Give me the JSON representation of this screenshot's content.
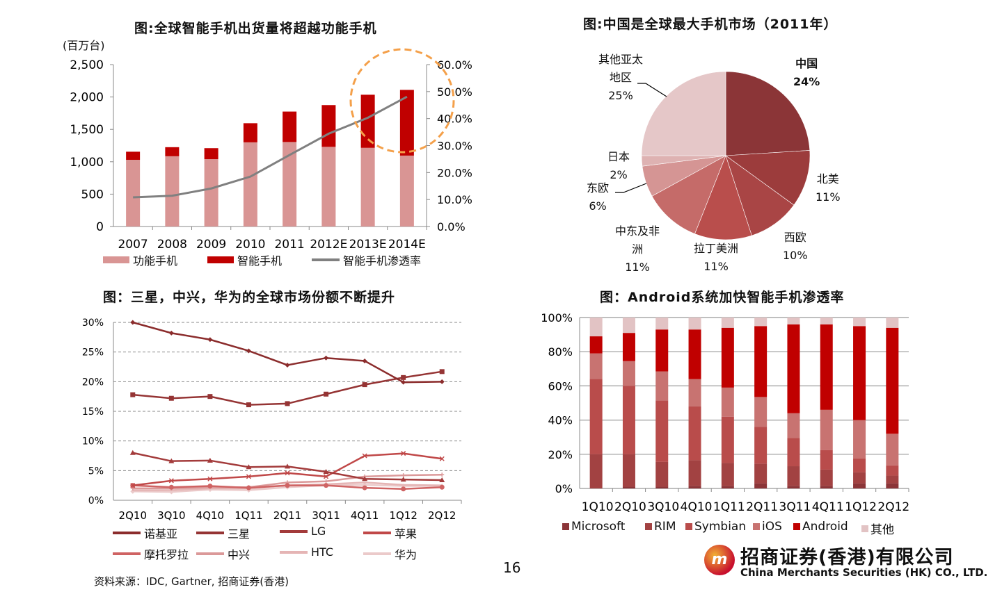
{
  "page_number": "16",
  "source_note": "资料来源：IDC, Gartner, 招商证券(香港)",
  "logo": {
    "chinese": "招商证券(香港)有限公司",
    "english": "China Merchants Securities (HK) CO., LTD.",
    "mark": "m"
  },
  "annotation": {
    "type": "dashed-circle",
    "color": "#F4A04A"
  },
  "chart_data": [
    {
      "type": "bar",
      "stacked": true,
      "title": "图:全球智能手机出货量将超越功能手机",
      "ylabel": "(百万台)",
      "categories": [
        "2007",
        "2008",
        "2009",
        "2010",
        "2011",
        "2012E",
        "2013E",
        "2014E"
      ],
      "ylim": [
        0,
        2500
      ],
      "yticks": [
        "0",
        "500",
        "1,000",
        "1,500",
        "2,000",
        "2,500"
      ],
      "y2lim": [
        0,
        60
      ],
      "y2ticks": [
        "0.0%",
        "10.0%",
        "20.0%",
        "30.0%",
        "40.0%",
        "50.0%",
        "60.0%"
      ],
      "series": [
        {
          "name": "功能手机",
          "type": "bar",
          "color": "#D99594",
          "values": [
            1030,
            1085,
            1040,
            1300,
            1305,
            1230,
            1215,
            1095
          ]
        },
        {
          "name": "智能手机",
          "type": "bar",
          "color": "#C00000",
          "values": [
            125,
            140,
            170,
            295,
            470,
            645,
            820,
            1015
          ]
        },
        {
          "name": "智能手机渗透率",
          "type": "line",
          "axis": "right",
          "color": "#808080",
          "values": [
            10.8,
            11.4,
            14.1,
            18.5,
            26.5,
            34.4,
            40.3,
            48.1
          ]
        }
      ]
    },
    {
      "type": "pie",
      "title": "图:中国是全球最大手机市场（2011年）",
      "slices": [
        {
          "label": "中国",
          "value": 24,
          "text": "24%",
          "color": "#8B3537"
        },
        {
          "label": "北美",
          "value": 11,
          "text": "11%",
          "color": "#9C3C3C"
        },
        {
          "label": "西欧",
          "value": 10,
          "text": "10%",
          "color": "#A94545"
        },
        {
          "label": "拉丁美洲",
          "value": 11,
          "text": "11%",
          "color": "#B94E4C"
        },
        {
          "label": "中东及非洲",
          "value": 11,
          "text": "11%",
          "color": "#C56B69"
        },
        {
          "label": "东欧",
          "value": 6,
          "text": "6%",
          "color": "#D59594"
        },
        {
          "label": "日本",
          "value": 2,
          "text": "2%",
          "color": "#DEB2B2"
        },
        {
          "label": "其他亚太地区",
          "value": 25,
          "text": "25%",
          "color": "#E5C7C8"
        }
      ]
    },
    {
      "type": "line",
      "title": "图：三星，中兴，华为的全球市场份额不断提升",
      "categories": [
        "2Q10",
        "3Q10",
        "4Q10",
        "1Q11",
        "2Q11",
        "3Q11",
        "4Q11",
        "1Q12",
        "2Q12"
      ],
      "ylim": [
        0,
        30
      ],
      "yticks": [
        "0%",
        "5%",
        "10%",
        "15%",
        "20%",
        "25%",
        "30%"
      ],
      "grid": true,
      "series": [
        {
          "name": "诺基亚",
          "color": "#8B2C2C",
          "marker": "diamond",
          "values": [
            30,
            28.2,
            27.1,
            25.2,
            22.8,
            24,
            23.5,
            19.9,
            20
          ]
        },
        {
          "name": "三星",
          "color": "#953434",
          "marker": "square",
          "values": [
            17.8,
            17.2,
            17.5,
            16.1,
            16.3,
            17.9,
            19.5,
            20.7,
            21.7
          ]
        },
        {
          "name": "LG",
          "color": "#A33B3B",
          "marker": "triangle",
          "values": [
            8,
            6.6,
            6.7,
            5.6,
            5.7,
            4.8,
            3.6,
            3.5,
            3.4
          ]
        },
        {
          "name": "苹果",
          "color": "#C04848",
          "marker": "x",
          "values": [
            2.5,
            3.3,
            3.6,
            4,
            4.6,
            4,
            7.5,
            7.9,
            7
          ]
        },
        {
          "name": "摩托罗拉",
          "color": "#CF6363",
          "marker": "circle",
          "values": [
            2.5,
            2.2,
            2.4,
            2.1,
            2.5,
            2.5,
            2.1,
            1.9,
            2.2
          ]
        },
        {
          "name": "中兴",
          "color": "#DB9999",
          "marker": "plus",
          "values": [
            2,
            2,
            2.2,
            2.2,
            3,
            3.2,
            4,
            4.2,
            4.3
          ]
        },
        {
          "name": "HTC",
          "color": "#E5B5B5",
          "marker": "none",
          "values": [
            1.7,
            1.7,
            2,
            2,
            2.5,
            2.7,
            3,
            2.6,
            2.5
          ]
        },
        {
          "name": "华为",
          "color": "#EBCACA",
          "marker": "diamond",
          "values": [
            1.5,
            1.4,
            1.8,
            1.7,
            2.2,
            2.5,
            2.6,
            2.4,
            2.4
          ]
        }
      ]
    },
    {
      "type": "bar",
      "stacked": true,
      "percent": true,
      "title": "图：Android系统加快智能手机渗透率",
      "categories": [
        "1Q10",
        "2Q10",
        "3Q10",
        "4Q10",
        "1Q11",
        "2Q11",
        "3Q11",
        "4Q11",
        "1Q12",
        "2Q12"
      ],
      "ylim": [
        0,
        100
      ],
      "yticks": [
        "0%",
        "20%",
        "40%",
        "60%",
        "80%",
        "100%"
      ],
      "series": [
        {
          "name": "Microsoft",
          "color": "#8B3538",
          "values": [
            0,
            1,
            1,
            1.5,
            1.5,
            3,
            1.5,
            1.5,
            3,
            3
          ]
        },
        {
          "name": "RIM",
          "color": "#A24242",
          "values": [
            20,
            19,
            14.5,
            15,
            13.5,
            11.5,
            11.5,
            9.5,
            6.5,
            4.5
          ]
        },
        {
          "name": "Symbian",
          "color": "#B94C4B",
          "values": [
            44,
            40,
            36,
            31.5,
            27,
            21.5,
            16.5,
            11.5,
            8,
            6
          ]
        },
        {
          "name": "iOS",
          "color": "#C87371",
          "values": [
            15,
            14.5,
            17,
            16,
            17,
            17.5,
            14.5,
            23.5,
            22.5,
            18.5
          ]
        },
        {
          "name": "Android",
          "color": "#C00000",
          "values": [
            10,
            16.5,
            24.5,
            29,
            35,
            41.5,
            52,
            50,
            55,
            62
          ]
        },
        {
          "name": "其他",
          "color": "#E2C3C4",
          "values": [
            11,
            9,
            7,
            7,
            6,
            5,
            4,
            4,
            5,
            6
          ]
        }
      ]
    }
  ]
}
